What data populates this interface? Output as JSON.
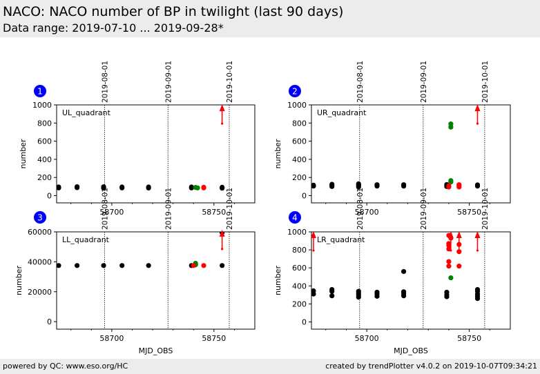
{
  "header": {
    "title": "NACO: NACO number of BP in twilight (last 90 days)",
    "subtitle": "Data range: 2019-07-10 ... 2019-09-28*"
  },
  "footer": {
    "left": "powered by QC: www.eso.org/HC",
    "right": "created by trendPlotter v4.0.2 on 2019-10-07T09:34:21"
  },
  "colors": {
    "black": "#000000",
    "green": "#008000",
    "red": "#ff0000",
    "badge": "#0000ff"
  },
  "chart_data": [
    {
      "type": "scatter",
      "panel": "1",
      "label": "UL_quadrant",
      "ylabel": "number",
      "xlabel": "",
      "ylim": [
        -80,
        1000
      ],
      "xlim": [
        58673,
        58770
      ],
      "xticks": [
        58700,
        58750
      ],
      "yticks": [
        0,
        200,
        400,
        600,
        800,
        1000
      ],
      "ytick_labels": [
        "0",
        "200",
        "400",
        "600",
        "800",
        "1000"
      ],
      "date_lines": [
        {
          "x": 58696.5,
          "label": "2019-08-01"
        },
        {
          "x": 58727.5,
          "label": "2019-09-01"
        },
        {
          "x": 58757.5,
          "label": "2019-10-01"
        }
      ],
      "series": [
        {
          "color": "black",
          "points": [
            [
              58674,
              85
            ],
            [
              58674,
              95
            ],
            [
              58683,
              88
            ],
            [
              58683,
              98
            ],
            [
              58696,
              82
            ],
            [
              58696,
              90
            ],
            [
              58696,
              97
            ],
            [
              58705,
              85
            ],
            [
              58705,
              95
            ],
            [
              58718,
              84
            ],
            [
              58718,
              95
            ],
            [
              58739,
              85
            ],
            [
              58739,
              95
            ],
            [
              58754,
              82
            ],
            [
              58754,
              92
            ]
          ]
        },
        {
          "color": "green",
          "points": [
            [
              58741,
              90
            ],
            [
              58742,
              85
            ]
          ]
        },
        {
          "color": "red",
          "points": [
            [
              58745,
              85
            ],
            [
              58745,
              92
            ]
          ]
        }
      ],
      "arrows": [
        {
          "x": 58754,
          "y": 900
        }
      ]
    },
    {
      "type": "scatter",
      "panel": "2",
      "label": "UR_quadrant",
      "ylabel": "number",
      "xlabel": "",
      "ylim": [
        -80,
        1000
      ],
      "xlim": [
        58673,
        58770
      ],
      "xticks": [
        58700,
        58750
      ],
      "yticks": [
        0,
        200,
        400,
        600,
        800,
        1000
      ],
      "ytick_labels": [
        "0",
        "200",
        "400",
        "600",
        "800",
        "1000"
      ],
      "date_lines": [
        {
          "x": 58696.5,
          "label": "2019-08-01"
        },
        {
          "x": 58727.5,
          "label": "2019-09-01"
        },
        {
          "x": 58757.5,
          "label": "2019-10-01"
        }
      ],
      "series": [
        {
          "color": "black",
          "points": [
            [
              58674,
              105
            ],
            [
              58674,
              115
            ],
            [
              58683,
              100
            ],
            [
              58683,
              112
            ],
            [
              58683,
              125
            ],
            [
              58696,
              95
            ],
            [
              58696,
              108
            ],
            [
              58696,
              120
            ],
            [
              58696,
              130
            ],
            [
              58705,
              105
            ],
            [
              58705,
              120
            ],
            [
              58718,
              105
            ],
            [
              58718,
              120
            ],
            [
              58739,
              100
            ],
            [
              58739,
              112
            ],
            [
              58739,
              122
            ],
            [
              58754,
              105
            ],
            [
              58754,
              118
            ]
          ]
        },
        {
          "color": "green",
          "points": [
            [
              58741,
              790
            ],
            [
              58741,
              755
            ],
            [
              58741,
              150
            ],
            [
              58741,
              165
            ]
          ]
        },
        {
          "color": "red",
          "points": [
            [
              58740,
              95
            ],
            [
              58740,
              108
            ],
            [
              58745,
              95
            ],
            [
              58745,
              110
            ],
            [
              58745,
              120
            ]
          ]
        }
      ],
      "arrows": [
        {
          "x": 58754,
          "y": 900
        }
      ]
    },
    {
      "type": "scatter",
      "panel": "3",
      "label": "LL_quadrant",
      "ylabel": "number",
      "xlabel": "MJD_OBS",
      "ylim": [
        -5000,
        60000
      ],
      "xlim": [
        58673,
        58770
      ],
      "xticks": [
        58700,
        58750
      ],
      "yticks": [
        0,
        20000,
        40000,
        60000
      ],
      "ytick_labels": [
        "0",
        "20000",
        "40000",
        "60000"
      ],
      "date_lines": [
        {
          "x": 58696.5,
          "label": "2019-08-01"
        },
        {
          "x": 58727.5,
          "label": "2019-09-01"
        },
        {
          "x": 58757.5,
          "label": "2019-10-01"
        }
      ],
      "series": [
        {
          "color": "black",
          "points": [
            [
              58674,
              37500
            ],
            [
              58683,
              37500
            ],
            [
              58696,
              37500
            ],
            [
              58705,
              37500
            ],
            [
              58718,
              37500
            ],
            [
              58739,
              37500
            ],
            [
              58754,
              37500
            ],
            [
              58754,
              59500
            ]
          ]
        },
        {
          "color": "green",
          "points": [
            [
              58741,
              38000
            ],
            [
              58741,
              39000
            ]
          ]
        },
        {
          "color": "red",
          "points": [
            [
              58740,
              37500
            ],
            [
              58745,
              37500
            ]
          ]
        }
      ],
      "arrows": [
        {
          "x": 58754,
          "y": 55000
        }
      ]
    },
    {
      "type": "scatter",
      "panel": "4",
      "label": "LR_quadrant",
      "ylabel": "number",
      "xlabel": "MJD_OBS",
      "ylim": [
        -80,
        1000
      ],
      "xlim": [
        58673,
        58770
      ],
      "xticks": [
        58700,
        58750
      ],
      "yticks": [
        0,
        200,
        400,
        600,
        800,
        1000
      ],
      "ytick_labels": [
        "0",
        "200",
        "400",
        "600",
        "800",
        "1000"
      ],
      "date_lines": [
        {
          "x": 58696.5,
          "label": "2019-08-01"
        },
        {
          "x": 58727.5,
          "label": "2019-09-01"
        },
        {
          "x": 58757.5,
          "label": "2019-10-01"
        }
      ],
      "series": [
        {
          "color": "black",
          "points": [
            [
              58674,
              310
            ],
            [
              58674,
              345
            ],
            [
              58683,
              290
            ],
            [
              58683,
              340
            ],
            [
              58683,
              360
            ],
            [
              58696,
              275
            ],
            [
              58696,
              300
            ],
            [
              58696,
              320
            ],
            [
              58696,
              340
            ],
            [
              58705,
              285
            ],
            [
              58705,
              310
            ],
            [
              58705,
              330
            ],
            [
              58718,
              290
            ],
            [
              58718,
              315
            ],
            [
              58718,
              335
            ],
            [
              58718,
              560
            ],
            [
              58739,
              280
            ],
            [
              58739,
              300
            ],
            [
              58739,
              330
            ],
            [
              58754,
              260
            ],
            [
              58754,
              285
            ],
            [
              58754,
              310
            ],
            [
              58754,
              340
            ],
            [
              58754,
              360
            ]
          ]
        },
        {
          "color": "green",
          "points": [
            [
              58741,
              490
            ]
          ]
        },
        {
          "color": "red",
          "points": [
            [
              58740,
              620
            ],
            [
              58740,
              670
            ],
            [
              58740,
              810
            ],
            [
              58740,
              850
            ],
            [
              58740,
              870
            ],
            [
              58740,
              960
            ],
            [
              58741,
              930
            ],
            [
              58745,
              860
            ],
            [
              58745,
              780
            ],
            [
              58745,
              620
            ]
          ]
        }
      ],
      "arrows": [
        {
          "x": 58674,
          "y": 900
        },
        {
          "x": 58741,
          "y": 900
        },
        {
          "x": 58745,
          "y": 900
        },
        {
          "x": 58754,
          "y": 900
        }
      ]
    }
  ]
}
